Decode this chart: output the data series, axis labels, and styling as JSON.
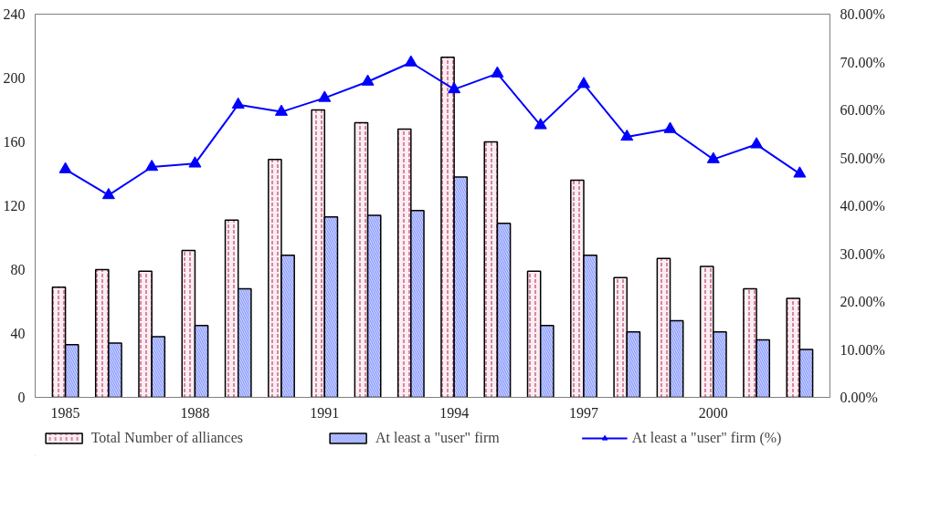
{
  "chart_data": {
    "type": "bar",
    "x": [
      1985,
      1986,
      1987,
      1988,
      1989,
      1990,
      1991,
      1992,
      1993,
      1994,
      1995,
      1996,
      1997,
      1998,
      1999,
      2000,
      2001,
      2002
    ],
    "xlim": [
      1984.3,
      2002.7
    ],
    "xticks": [
      1985,
      1988,
      1991,
      1994,
      1997,
      2000
    ],
    "ylim": [
      0,
      240
    ],
    "yticks": [
      0,
      40,
      80,
      120,
      160,
      200,
      240
    ],
    "y2lim": [
      0,
      80
    ],
    "y2ticks": [
      {
        "value": 0,
        "label": "0.00%"
      },
      {
        "value": 10,
        "label": "10.00%"
      },
      {
        "value": 20,
        "label": "20.00%"
      },
      {
        "value": 30,
        "label": "30.00%"
      },
      {
        "value": 40,
        "label": "40.00%"
      },
      {
        "value": 50,
        "label": "50.00%"
      },
      {
        "value": 60,
        "label": "60.00%"
      },
      {
        "value": 70,
        "label": "70.00%"
      },
      {
        "value": 80,
        "label": "80.00%"
      }
    ],
    "series": [
      {
        "name": "Total Number of alliances",
        "color": "#fbeef2",
        "values": [
          69,
          80,
          79,
          92,
          111,
          149,
          180,
          172,
          168,
          213,
          160,
          79,
          136,
          75,
          87,
          82,
          68,
          62
        ]
      },
      {
        "name": "At least a \"user\" firm",
        "color": "#c8d0ff",
        "values": [
          33,
          34,
          38,
          45,
          68,
          89,
          113,
          114,
          117,
          138,
          109,
          45,
          89,
          41,
          48,
          41,
          36,
          30
        ]
      },
      {
        "name": "At least a \"user\" firm (%)",
        "type": "line",
        "axis": "y2",
        "color": "#0000ff",
        "marker": "triangle",
        "values": [
          47.6,
          42.2,
          48.1,
          48.8,
          61.1,
          59.6,
          62.5,
          65.9,
          69.9,
          64.3,
          67.6,
          56.8,
          65.4,
          54.4,
          56.0,
          49.7,
          52.8,
          46.7
        ]
      }
    ],
    "grid": false,
    "legend": "bottom"
  }
}
